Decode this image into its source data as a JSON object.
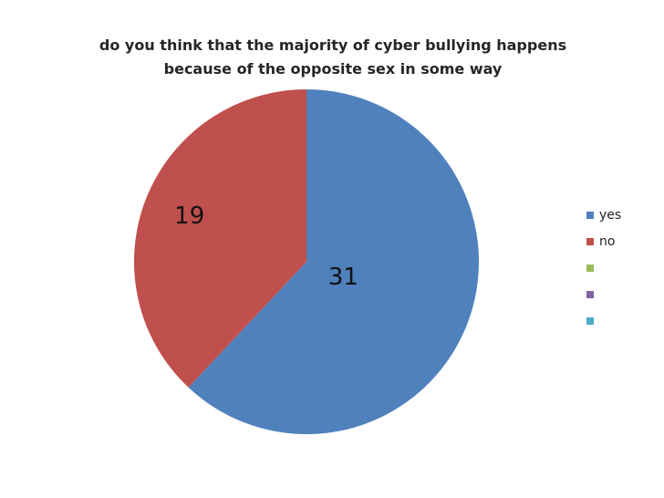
{
  "chart_data": {
    "type": "pie",
    "title_lines": [
      "do you think that the majority of cyber bullying happens",
      "because of the opposite sex in some way"
    ],
    "slices": [
      {
        "label": "yes",
        "value": 31,
        "color": "#4f81bd"
      },
      {
        "label": "no",
        "value": 19,
        "color": "#c0504d"
      }
    ],
    "legend": {
      "placement": "right",
      "entries": [
        {
          "label": "yes",
          "color": "#4f81bd"
        },
        {
          "label": "no",
          "color": "#c0504d"
        },
        {
          "label": "",
          "color": "#9bbb59"
        },
        {
          "label": "",
          "color": "#8064a2"
        },
        {
          "label": "",
          "color": "#4bacc6"
        }
      ]
    },
    "start_angle_deg": 0,
    "direction": "clockwise"
  }
}
